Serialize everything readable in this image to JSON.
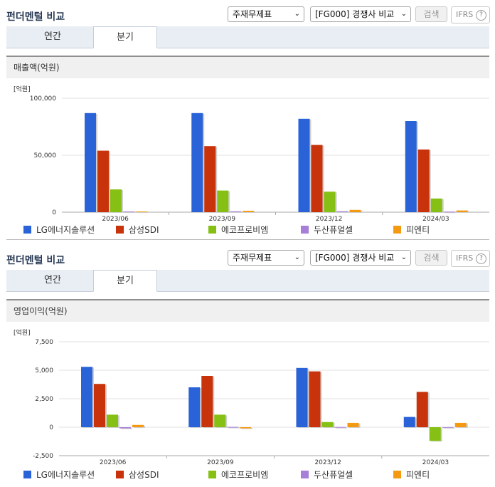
{
  "colors": {
    "LG에너지솔루션": "#2a62d8",
    "삼성SDI": "#c8330c",
    "에코프로비엠": "#86c014",
    "두산퓨얼셀": "#a77fd8",
    "피엔티": "#f49a12"
  },
  "panels": [
    {
      "header": {
        "title": "펀더멘털 비교",
        "select1": "주재무제표",
        "select2": "[FG000] 경쟁사 비교",
        "search_label": "검색",
        "ifrs_label": "IFRS",
        "help_icon": "?"
      },
      "tabs": [
        {
          "label": "연간",
          "active": false
        },
        {
          "label": "분기",
          "active": true
        }
      ],
      "chart_title": "매출액(억원)",
      "unit_label": "[억원]",
      "legend": [
        "LG에너지솔루션",
        "삼성SDI",
        "에코프로비엠",
        "두산퓨얼셀",
        "피엔티"
      ],
      "chart_data": {
        "type": "bar",
        "categories": [
          "2023/06",
          "2023/09",
          "2023/12",
          "2024/03"
        ],
        "ylim": [
          0,
          100000
        ],
        "yticks": [
          0,
          50000,
          100000
        ],
        "ytick_labels": [
          "0",
          "50,000",
          "100,000"
        ],
        "series": [
          {
            "name": "LG에너지솔루션",
            "values": [
              87000,
              87000,
              82000,
              80000
            ]
          },
          {
            "name": "삼성SDI",
            "values": [
              54000,
              58000,
              59000,
              55000
            ]
          },
          {
            "name": "에코프로비엠",
            "values": [
              20000,
              19000,
              18000,
              12000
            ]
          },
          {
            "name": "두산퓨얼셀",
            "values": [
              600,
              700,
              800,
              500
            ]
          },
          {
            "name": "피엔티",
            "values": [
              600,
              1200,
              2000,
              1500
            ]
          }
        ]
      }
    },
    {
      "header": {
        "title": "펀더멘털 비교",
        "select1": "주재무제표",
        "select2": "[FG000] 경쟁사 비교",
        "search_label": "검색",
        "ifrs_label": "IFRS",
        "help_icon": "?"
      },
      "tabs": [
        {
          "label": "연간",
          "active": false
        },
        {
          "label": "분기",
          "active": true
        }
      ],
      "chart_title": "영업이익(억원)",
      "unit_label": "[억원]",
      "legend": [
        "LG에너지솔루션",
        "삼성SDI",
        "에코프로비엠",
        "두산퓨얼셀",
        "피엔티"
      ],
      "chart_data": {
        "type": "bar",
        "categories": [
          "2023/06",
          "2023/09",
          "2023/12",
          "2024/03"
        ],
        "ylim": [
          -2500,
          7500
        ],
        "yticks": [
          -2500,
          0,
          2500,
          5000,
          7500
        ],
        "ytick_labels": [
          "-2,500",
          "0",
          "2,500",
          "5,000",
          "7,500"
        ],
        "series": [
          {
            "name": "LG에너지솔루션",
            "values": [
              5300,
              3500,
              5200,
              900
            ]
          },
          {
            "name": "삼성SDI",
            "values": [
              3800,
              4500,
              4900,
              3100
            ]
          },
          {
            "name": "에코프로비엠",
            "values": [
              1100,
              1100,
              450,
              -1200
            ]
          },
          {
            "name": "두산퓨얼셀",
            "values": [
              -100,
              30,
              20,
              10
            ]
          },
          {
            "name": "피엔티",
            "values": [
              200,
              -100,
              380,
              380
            ]
          }
        ]
      }
    }
  ]
}
